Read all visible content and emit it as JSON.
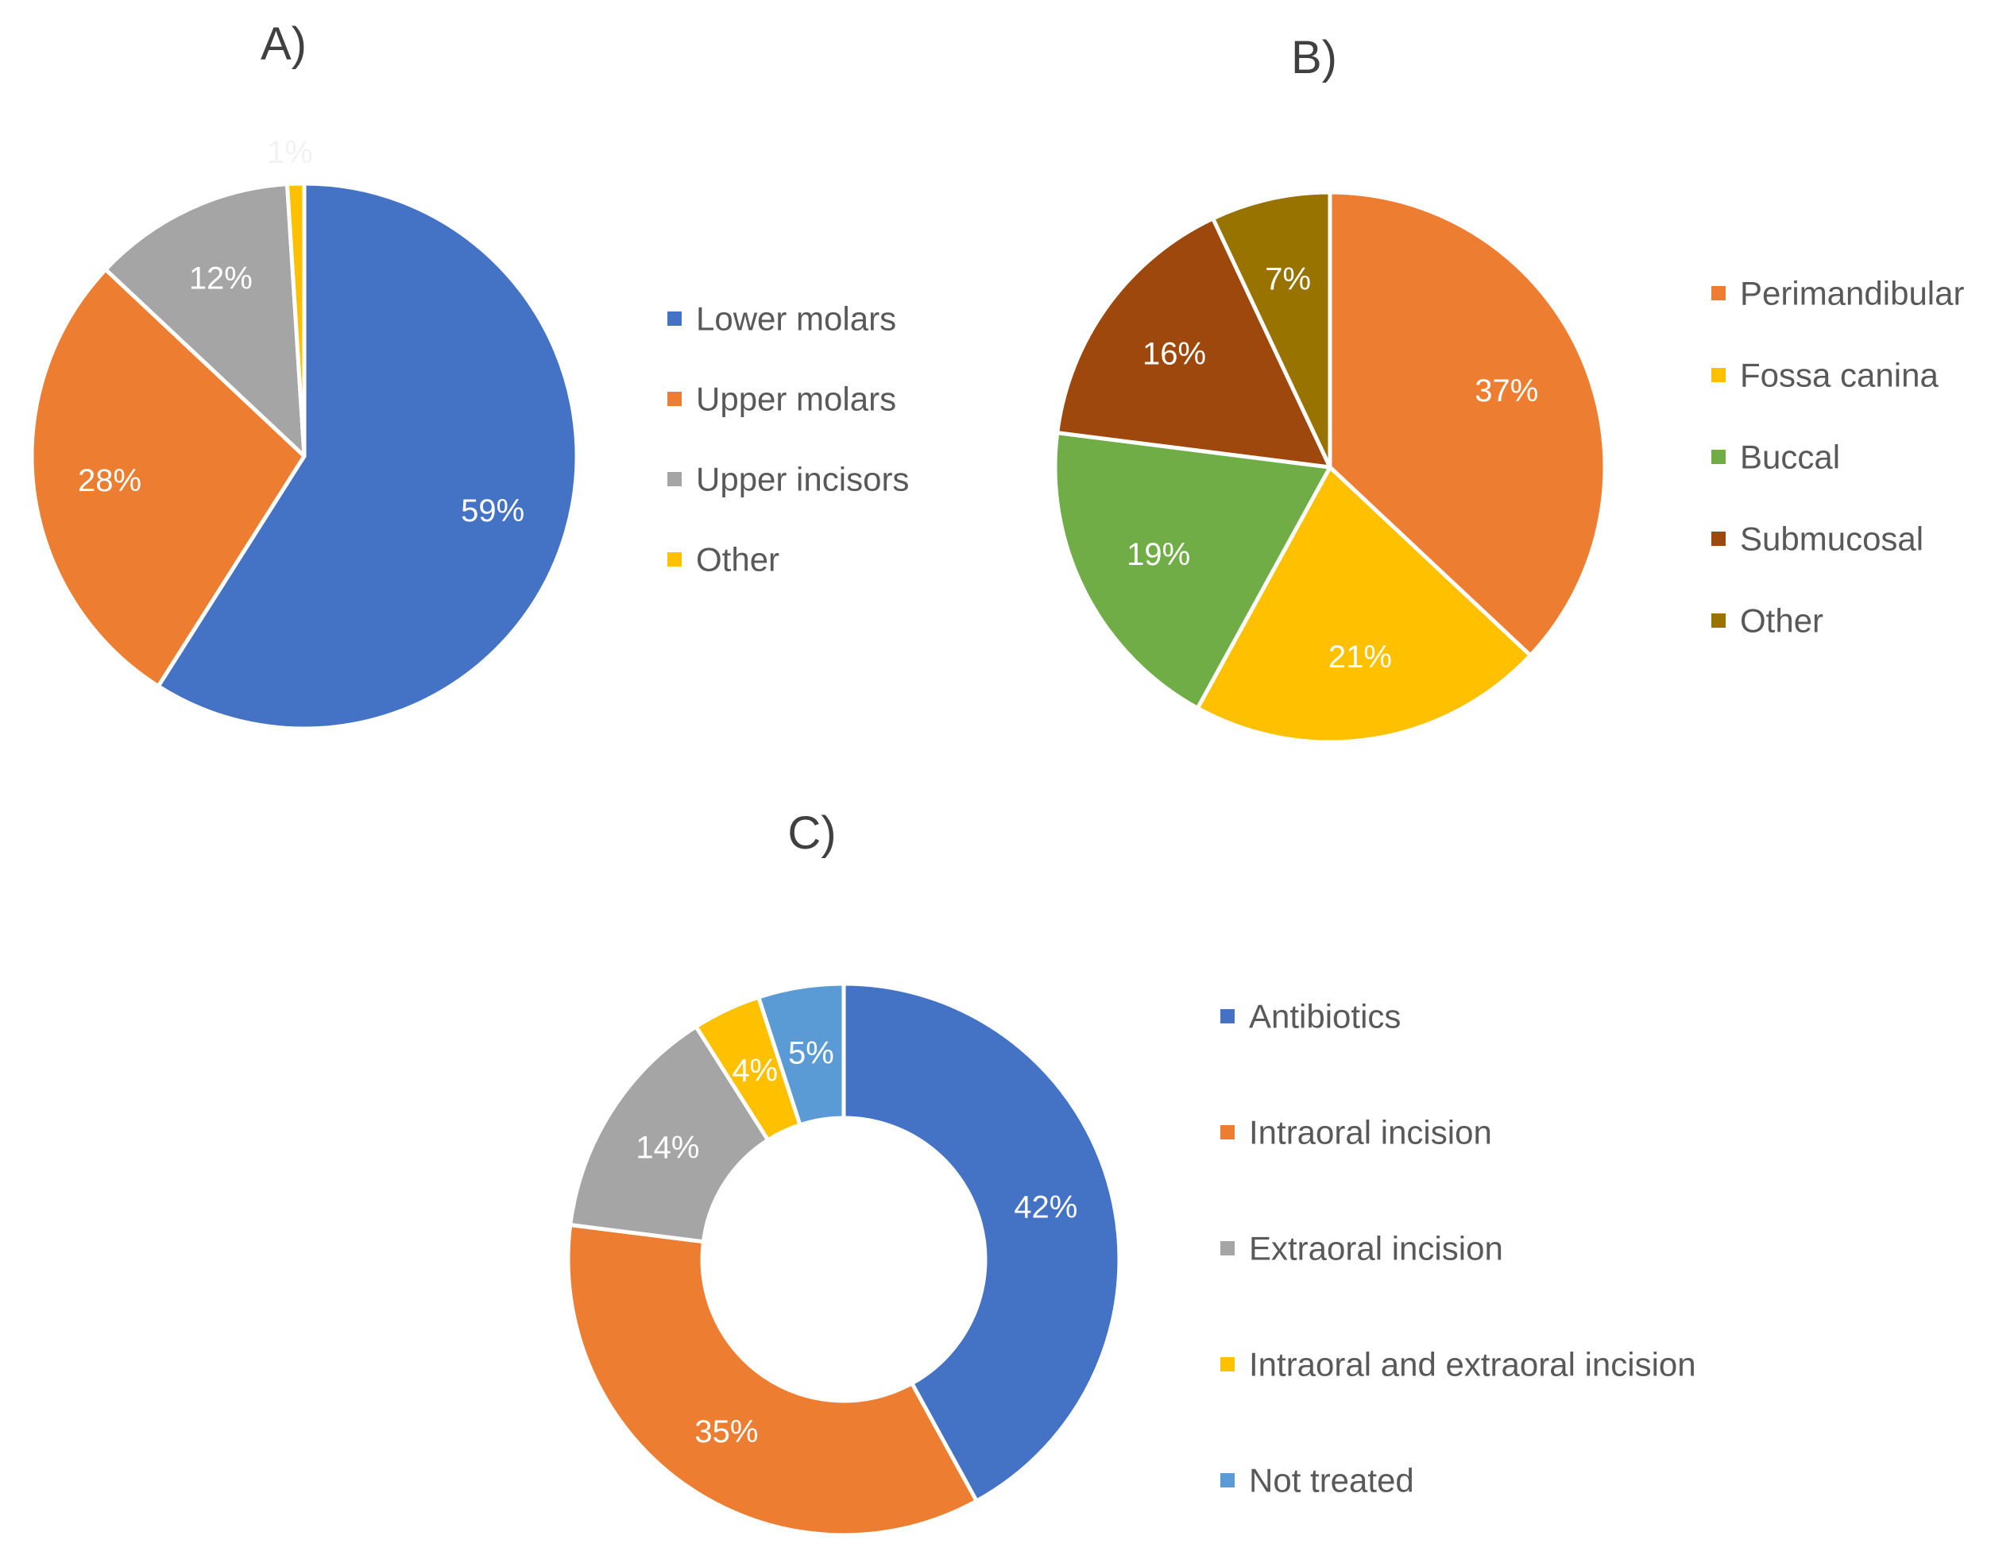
{
  "chart_data": [
    {
      "type": "pie",
      "title": "A)",
      "categories": [
        "Lower molars",
        "Upper molars",
        "Upper incisors",
        "Other"
      ],
      "values": [
        59,
        28,
        12,
        1
      ],
      "labels": [
        "59%",
        "28%",
        "12%",
        "1%"
      ],
      "colors": [
        "#4472C4",
        "#ED7D31",
        "#A5A5A5",
        "#FFC000"
      ],
      "label_colors": [
        "#FFFFFF",
        "#FFFFFF",
        "#FFFFFF",
        "#F2F2F2"
      ],
      "legend_position": "right"
    },
    {
      "type": "pie",
      "title": "B)",
      "categories": [
        "Perimandibular",
        "Fossa canina",
        "Buccal",
        "Submucosal",
        "Other"
      ],
      "values": [
        37,
        21,
        19,
        16,
        7
      ],
      "labels": [
        "37%",
        "21%",
        "19%",
        "16%",
        "7%"
      ],
      "colors": [
        "#ED7D31",
        "#FFC000",
        "#70AD47",
        "#9E480E",
        "#997300"
      ],
      "label_colors": [
        "#FFFFFF",
        "#FFFFFF",
        "#FFFFFF",
        "#FFFFFF",
        "#FFFFFF"
      ],
      "legend_position": "right"
    },
    {
      "type": "donut",
      "title": "C)",
      "categories": [
        "Antibiotics",
        "Intraoral incision",
        "Extraoral incision",
        "Intraoral and extraoral incision",
        "Not treated"
      ],
      "values": [
        42,
        35,
        14,
        4,
        5
      ],
      "labels": [
        "42%",
        "35%",
        "14%",
        "4%",
        "5%"
      ],
      "colors": [
        "#4472C4",
        "#ED7D31",
        "#A5A5A5",
        "#FFC000",
        "#5B9BD5"
      ],
      "label_colors": [
        "#FFFFFF",
        "#FFFFFF",
        "#FFFFFF",
        "#FFFFFF",
        "#FFFFFF"
      ],
      "legend_position": "right"
    }
  ]
}
